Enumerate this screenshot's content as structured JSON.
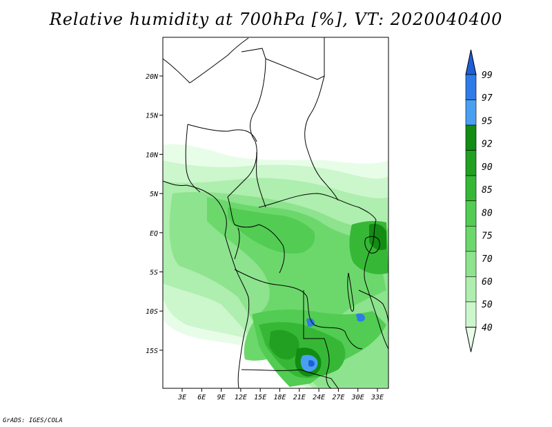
{
  "title": "Relative humidity at 700hPa [%], VT: 2020040400",
  "credit": "GrADS: IGES/COLA",
  "map": {
    "latitude_labels": [
      "20N",
      "15N",
      "10N",
      "5N",
      "EQ",
      "5S",
      "10S",
      "15S"
    ],
    "longitude_labels": [
      "3E",
      "6E",
      "9E",
      "12E",
      "15E",
      "18E",
      "21E",
      "24E",
      "27E",
      "30E",
      "33E"
    ]
  },
  "colorbar": {
    "labels": [
      "99",
      "97",
      "95",
      "92",
      "90",
      "85",
      "80",
      "75",
      "70",
      "60",
      "50",
      "40"
    ],
    "colors": [
      "#1e5fd8",
      "#2f7be8",
      "#4aa0f0",
      "#138c13",
      "#22a022",
      "#36b836",
      "#52cc52",
      "#6cd86c",
      "#8ee38e",
      "#aeeeae",
      "#ccf6cc",
      "#e8fde8"
    ]
  },
  "palette": {
    "land_white": "#ffffff",
    "border_color": "#000000"
  }
}
